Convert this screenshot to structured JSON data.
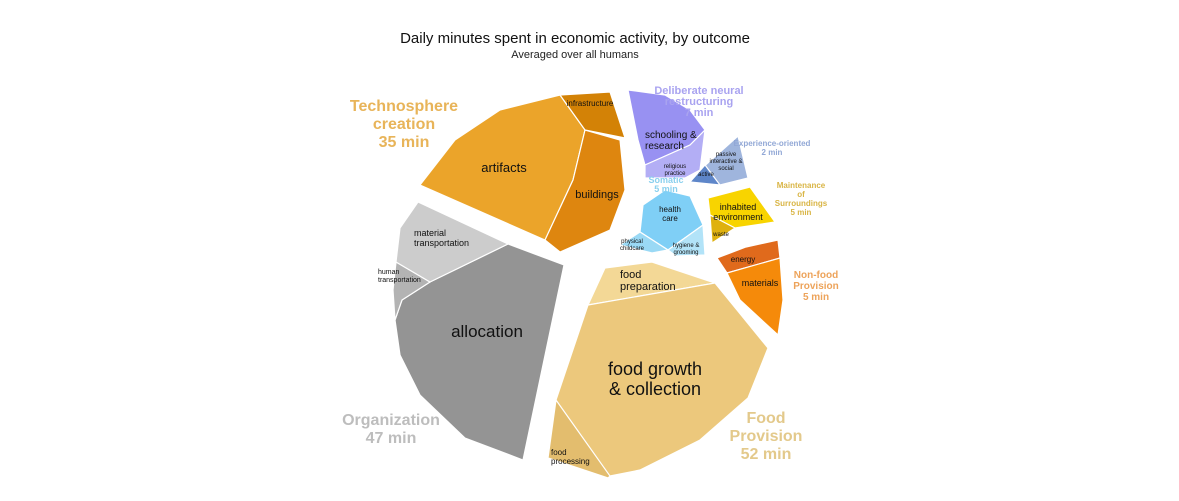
{
  "chart_data": {
    "type": "pie",
    "title": "Daily minutes spent in economic activity, by outcome",
    "subtitle": "Averaged over all humans",
    "groups": [
      {
        "name": "Food Provision",
        "total_label": "52 min",
        "color": "#e8c878",
        "label_color": "#e3c98b",
        "slices": [
          {
            "label": "food preparation",
            "color": "#f3d896"
          },
          {
            "label": "food growth & collection",
            "color": "#ecc87c"
          },
          {
            "label": "food processing",
            "color": "#e3bd6e"
          }
        ]
      },
      {
        "name": "Organization",
        "total_label": "47 min",
        "color": "#8e8e8e",
        "label_color": "#bdbdbd",
        "slices": [
          {
            "label": "allocation",
            "color": "#949494"
          },
          {
            "label": "human transportation",
            "color": "#b3b3b3"
          },
          {
            "label": "material transportation",
            "color": "#cccccc"
          }
        ]
      },
      {
        "name": "Technosphere creation",
        "total_label": "35 min",
        "color": "#e8a020",
        "label_color": "#e8b459",
        "slices": [
          {
            "label": "artifacts",
            "color": "#eba42a"
          },
          {
            "label": "buildings",
            "color": "#de860f"
          },
          {
            "label": "infrastructure",
            "color": "#d38206"
          }
        ]
      },
      {
        "name": "Deliberate neural restructuring",
        "total_label": "7 min",
        "color": "#9a94ee",
        "label_color": "#a9a3f0",
        "slices": [
          {
            "label": "schooling & research",
            "color": "#9891f2"
          },
          {
            "label": "religious practice",
            "color": "#b3aef5"
          }
        ]
      },
      {
        "name": "Experience-oriented",
        "total_label": "2 min",
        "color": "#9cb1db",
        "label_color": "#92a8d6",
        "slices": [
          {
            "label": "passive interactive & social",
            "color": "#9fb5dd"
          },
          {
            "label": "active",
            "color": "#5e86c9"
          }
        ]
      },
      {
        "name": "Somatic",
        "total_label": "5 min",
        "color": "#7fd0f5",
        "label_color": "#8ad0ee",
        "slices": [
          {
            "label": "health care",
            "color": "#7fcff6"
          },
          {
            "label": "hygiene & grooming",
            "color": "#b2e3f8"
          },
          {
            "label": "physical childcare",
            "color": "#9ad9f5"
          }
        ]
      },
      {
        "name": "Maintenance of Surroundings",
        "total_label": "5 min",
        "color": "#f7cf00",
        "label_color": "#d9b545",
        "slices": [
          {
            "label": "inhabited environment",
            "color": "#f8d400"
          },
          {
            "label": "waste",
            "color": "#dfb10f"
          }
        ]
      },
      {
        "name": "Non-food Provision",
        "total_label": "5 min",
        "color": "#f08a0c",
        "label_color": "#eda35a",
        "slices": [
          {
            "label": "energy",
            "color": "#e06a1c"
          },
          {
            "label": "materials",
            "color": "#f58a0a"
          }
        ]
      }
    ]
  }
}
